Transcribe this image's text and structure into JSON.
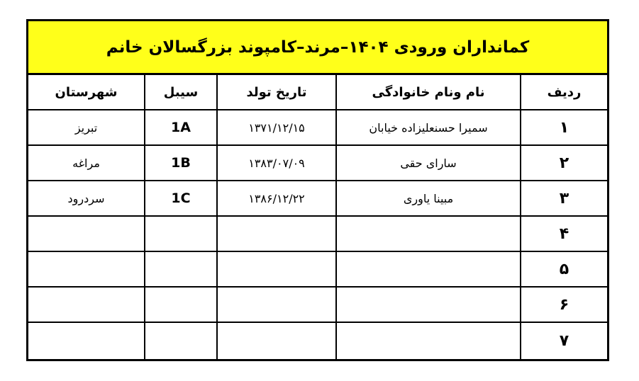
{
  "title": "کمانداران ورودی ۱۴۰۴–مرند–کامپوند بزرگسالان خانم",
  "headers": {
    "city": "شهرستان",
    "sybil": "سیبل",
    "birth": "تاریخ تولد",
    "name": "نام ونام خانوادگی",
    "row": "ردیف"
  },
  "rows": [
    {
      "row": "۱",
      "name": "سمیرا حسنعلیزاده خیابان",
      "birth": "۱۳۷۱/۱۲/۱۵",
      "sybil": "1A",
      "city": "تبریز"
    },
    {
      "row": "۲",
      "name": "سارای حقی",
      "birth": "۱۳۸۳/۰۷/۰۹",
      "sybil": "1B",
      "city": "مراغه"
    },
    {
      "row": "۳",
      "name": "مبینا یاوری",
      "birth": "۱۳۸۶/۱۲/۲۲",
      "sybil": "1C",
      "city": "سردرود"
    },
    {
      "row": "۴",
      "name": "",
      "birth": "",
      "sybil": "",
      "city": ""
    },
    {
      "row": "۵",
      "name": "",
      "birth": "",
      "sybil": "",
      "city": ""
    },
    {
      "row": "۶",
      "name": "",
      "birth": "",
      "sybil": "",
      "city": ""
    },
    {
      "row": "۷",
      "name": "",
      "birth": "",
      "sybil": "",
      "city": ""
    }
  ],
  "colors": {
    "title_bg": "#ffff1a",
    "border": "#000000"
  }
}
